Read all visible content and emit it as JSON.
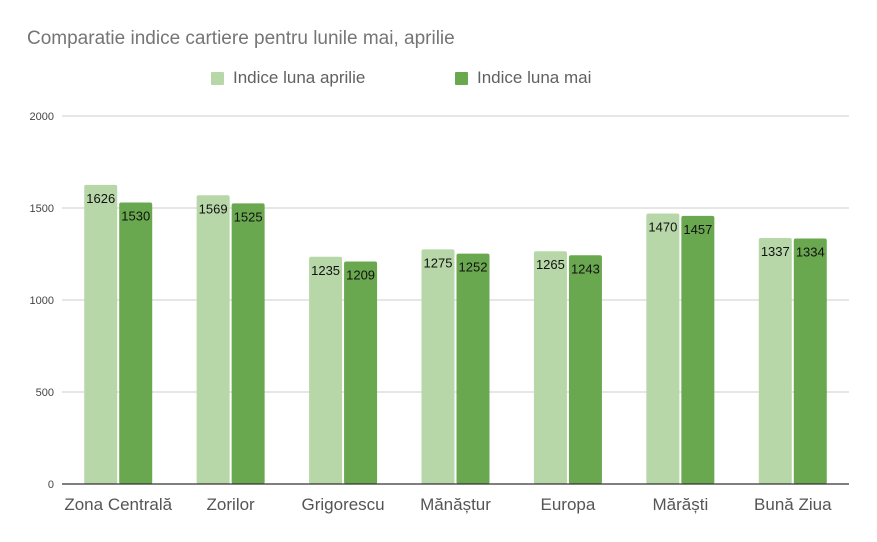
{
  "chart_data": {
    "type": "bar",
    "title": "Comparatie indice cartiere pentru lunile mai, aprilie",
    "xlabel": "",
    "ylabel": "",
    "categories": [
      "Zona Centrală",
      "Zorilor",
      "Grigorescu",
      "Mănăștur",
      "Europa",
      "Mărăști",
      "Bună Ziua"
    ],
    "series": [
      {
        "name": "Indice luna aprilie",
        "color": "#b7d7a8",
        "values": [
          1626,
          1569,
          1235,
          1275,
          1265,
          1470,
          1337
        ]
      },
      {
        "name": "Indice luna mai",
        "color": "#6aa84f",
        "values": [
          1530,
          1525,
          1209,
          1252,
          1243,
          1457,
          1334
        ]
      }
    ],
    "ylim": [
      0,
      2000
    ],
    "yticks": [
      0,
      500,
      1000,
      1500,
      2000
    ],
    "grid": true,
    "legend_position": "top",
    "data_labels": true
  }
}
